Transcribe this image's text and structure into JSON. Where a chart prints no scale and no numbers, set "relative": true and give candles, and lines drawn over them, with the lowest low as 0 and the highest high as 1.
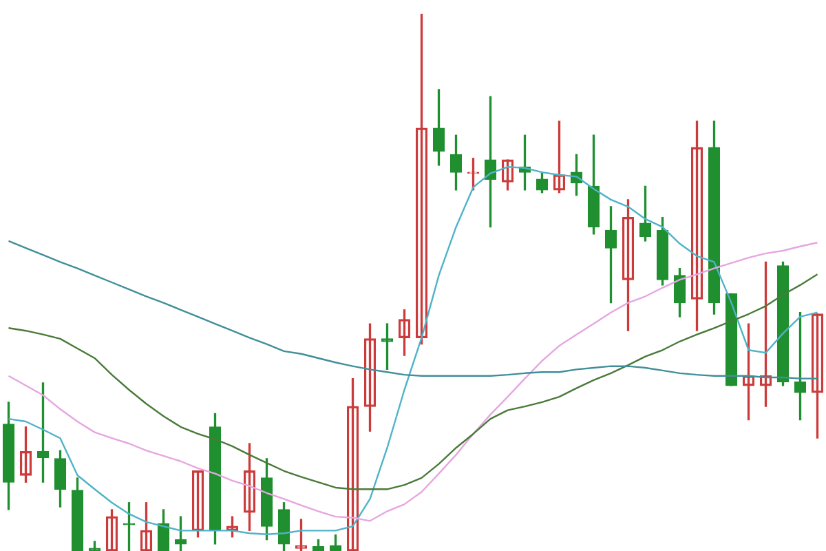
{
  "chart_data": {
    "type": "candlestick",
    "relative": true,
    "marker": "none",
    "categories": [
      null,
      null,
      null,
      null,
      null,
      null,
      null,
      null,
      null,
      null,
      null,
      null,
      null,
      null,
      null,
      null,
      null,
      null,
      null,
      null,
      null,
      null,
      null,
      null,
      null,
      null,
      null,
      null,
      null,
      null,
      null,
      null,
      null,
      null,
      null,
      null,
      null,
      null,
      null,
      null,
      null,
      null,
      null,
      null,
      null,
      null,
      null,
      null
    ],
    "ohlc": [
      [
        0.236,
        0.277,
        0.077,
        0.128
      ],
      [
        0.141,
        0.231,
        0.128,
        0.185
      ],
      [
        0.185,
        0.313,
        0.128,
        0.174
      ],
      [
        0.172,
        0.187,
        0.082,
        0.115
      ],
      [
        0.113,
        0.136,
        0,
        0
      ],
      [
        0.005,
        0.018,
        0,
        0
      ],
      [
        0,
        0.077,
        0,
        0.064
      ],
      [
        0.051,
        0.09,
        0,
        0.049
      ],
      [
        0,
        0.09,
        0,
        0.038
      ],
      [
        0.051,
        0.077,
        0,
        0
      ],
      [
        0.021,
        0.064,
        0,
        0.013
      ],
      [
        0.038,
        0.149,
        0.026,
        0.149
      ],
      [
        0.231,
        0.256,
        0.013,
        0.038
      ],
      [
        0.038,
        0.064,
        0.026,
        0.046
      ],
      [
        0.072,
        0.2,
        0.038,
        0.149
      ],
      [
        0.136,
        0.172,
        0.021,
        0.046
      ],
      [
        0.077,
        0.09,
        0,
        0.013
      ],
      [
        0.005,
        0.059,
        0,
        0.01
      ],
      [
        0.008,
        0.021,
        0,
        0
      ],
      [
        0.01,
        0.03,
        0,
        0
      ],
      [
        0,
        0.321,
        0,
        0.269
      ],
      [
        0.269,
        0.423,
        0.223,
        0.395
      ],
      [
        0.395,
        0.423,
        0.338,
        0.39
      ],
      [
        0.397,
        0.449,
        0.364,
        0.431
      ],
      [
        0.397,
        1,
        0.385,
        0.787
      ],
      [
        0.787,
        0.859,
        0.718,
        0.744
      ],
      [
        0.738,
        0.774,
        0.672,
        0.705
      ],
      [
        0.703,
        0.731,
        0.672,
        0.705
      ],
      [
        0.728,
        0.846,
        0.603,
        0.692
      ],
      [
        0.687,
        0.728,
        0.672,
        0.728
      ],
      [
        0.715,
        0.774,
        0.672,
        0.705
      ],
      [
        0.692,
        0.705,
        0.667,
        0.672
      ],
      [
        0.672,
        0.8,
        0.667,
        0.7
      ],
      [
        0.705,
        0.738,
        0.662,
        0.685
      ],
      [
        0.679,
        0.774,
        0.59,
        0.603
      ],
      [
        0.597,
        0.641,
        0.462,
        0.564
      ],
      [
        0.505,
        0.654,
        0.41,
        0.621
      ],
      [
        0.61,
        0.679,
        0.577,
        0.585
      ],
      [
        0.597,
        0.621,
        0.495,
        0.505
      ],
      [
        0.513,
        0.526,
        0.436,
        0.462
      ],
      [
        0.469,
        0.8,
        0.41,
        0.751
      ],
      [
        0.751,
        0.8,
        0.441,
        0.462
      ],
      [
        0.479,
        0.479,
        0.308,
        0.308
      ],
      [
        0.308,
        0.423,
        0.244,
        0.326
      ],
      [
        0.308,
        0.538,
        0.269,
        0.326
      ],
      [
        0.531,
        0.538,
        0.308,
        0.315
      ],
      [
        0.315,
        0.444,
        0.244,
        0.295
      ],
      [
        0.295,
        0.441,
        0.21,
        0.441
      ]
    ],
    "colors": [
      "#1f8f2f",
      "#cc3b3b",
      "#1f8f2f",
      "#1f8f2f",
      "#1f8f2f",
      "#1f8f2f",
      "#cc3b3b",
      "#1f8f2f",
      "#cc3b3b",
      "#1f8f2f",
      "#1f8f2f",
      "#cc3b3b",
      "#1f8f2f",
      "#cc3b3b",
      "#cc3b3b",
      "#1f8f2f",
      "#1f8f2f",
      "#cc3b3b",
      "#1f8f2f",
      "#1f8f2f",
      "#cc3b3b",
      "#cc3b3b",
      "#1f8f2f",
      "#cc3b3b",
      "#cc3b3b",
      "#1f8f2f",
      "#1f8f2f",
      "#cc3b3b",
      "#1f8f2f",
      "#cc3b3b",
      "#1f8f2f",
      "#1f8f2f",
      "#cc3b3b",
      "#1f8f2f",
      "#1f8f2f",
      "#1f8f2f",
      "#cc3b3b",
      "#1f8f2f",
      "#1f8f2f",
      "#1f8f2f",
      "#cc3b3b",
      "#1f8f2f",
      "#1f8f2f",
      "#cc3b3b",
      "#cc3b3b",
      "#1f8f2f",
      "#1f8f2f",
      "#cc3b3b"
    ],
    "series": [
      {
        "type": "line",
        "color": "#3f8f9a",
        "values": [
          0.577,
          0.564,
          0.551,
          0.538,
          0.526,
          0.513,
          0.5,
          0.487,
          0.474,
          0.462,
          0.449,
          0.436,
          0.423,
          0.41,
          0.397,
          0.385,
          0.372,
          0.367,
          0.359,
          0.351,
          0.344,
          0.338,
          0.333,
          0.328,
          0.326,
          0.326,
          0.326,
          0.326,
          0.326,
          0.328,
          0.331,
          0.333,
          0.333,
          0.338,
          0.341,
          0.344,
          0.344,
          0.341,
          0.336,
          0.331,
          0.328,
          0.326,
          0.326,
          0.326,
          0.323,
          0.323,
          0.321,
          0.321
        ]
      },
      {
        "type": "line",
        "color": "#4a7a3a",
        "values": [
          0.415,
          0.41,
          0.403,
          0.395,
          0.377,
          0.359,
          0.328,
          0.3,
          0.274,
          0.251,
          0.231,
          0.218,
          0.208,
          0.195,
          0.179,
          0.164,
          0.149,
          0.138,
          0.128,
          0.118,
          0.115,
          0.115,
          0.115,
          0.123,
          0.136,
          0.162,
          0.192,
          0.218,
          0.246,
          0.262,
          0.269,
          0.277,
          0.287,
          0.303,
          0.318,
          0.331,
          0.346,
          0.362,
          0.374,
          0.39,
          0.403,
          0.415,
          0.428,
          0.441,
          0.456,
          0.477,
          0.495,
          0.515
        ]
      },
      {
        "type": "line",
        "color": "#e6a6e0",
        "values": [
          0.326,
          0.308,
          0.29,
          0.264,
          0.241,
          0.221,
          0.21,
          0.2,
          0.187,
          0.177,
          0.167,
          0.154,
          0.144,
          0.131,
          0.121,
          0.108,
          0.097,
          0.085,
          0.074,
          0.064,
          0.062,
          0.056,
          0.074,
          0.087,
          0.11,
          0.144,
          0.179,
          0.218,
          0.254,
          0.287,
          0.321,
          0.354,
          0.382,
          0.403,
          0.423,
          0.444,
          0.462,
          0.474,
          0.49,
          0.505,
          0.515,
          0.526,
          0.536,
          0.546,
          0.554,
          0.559,
          0.567,
          0.574
        ]
      },
      {
        "type": "line",
        "color": "#4fb3c8",
        "values": [
          0.246,
          0.241,
          0.226,
          0.21,
          0.141,
          0.115,
          0.09,
          0.069,
          0.054,
          0.046,
          0.038,
          0.038,
          0.038,
          0.038,
          0.033,
          0.031,
          0.033,
          0.038,
          0.038,
          0.038,
          0.046,
          0.097,
          0.192,
          0.3,
          0.397,
          0.513,
          0.603,
          0.677,
          0.703,
          0.715,
          0.713,
          0.705,
          0.7,
          0.697,
          0.674,
          0.654,
          0.641,
          0.618,
          0.603,
          0.572,
          0.549,
          0.538,
          0.462,
          0.374,
          0.369,
          0.405,
          0.436,
          0.444
        ]
      }
    ]
  }
}
